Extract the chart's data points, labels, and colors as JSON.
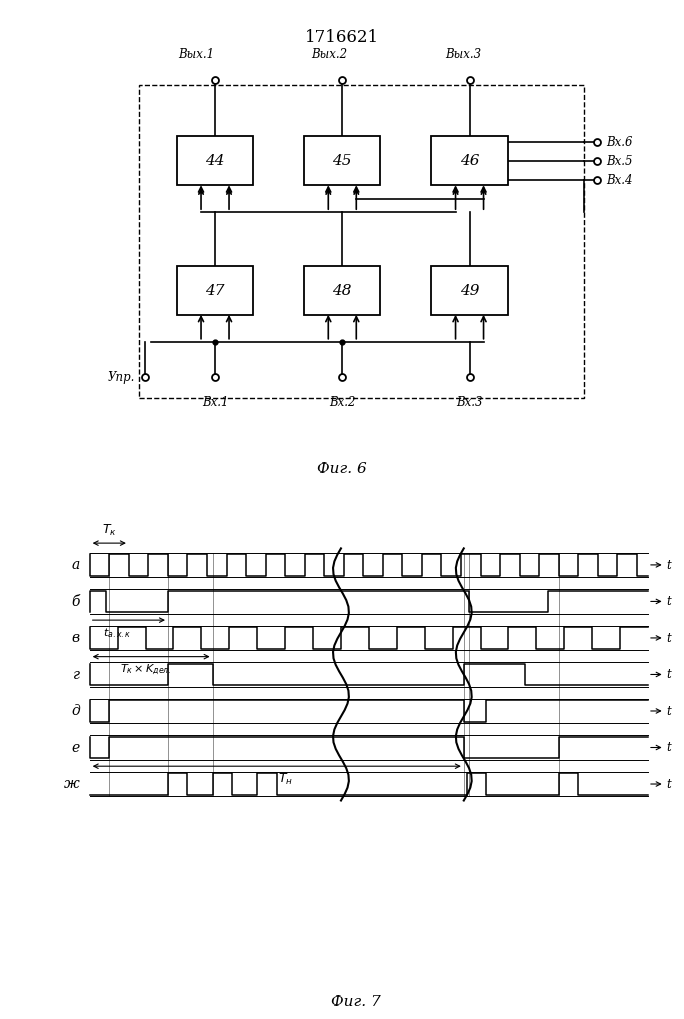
{
  "title": "1716621",
  "fig6_label": "Фиг. 6",
  "fig7_label": "Фиг. 7",
  "background": "#ffffff",
  "line_color": "#000000",
  "top_labels": [
    "Вых.1",
    "Вых.2",
    "Вых.3"
  ],
  "right_labels": [
    "Вх.6",
    "Вх.5",
    "Вх.4"
  ],
  "bot_labels": [
    "Вх.1",
    "Вх.2",
    "Вх.3"
  ],
  "control_label": "Упр.",
  "top_box_labels": [
    "44",
    "45",
    "46"
  ],
  "bot_box_labels": [
    "47",
    "48",
    "49"
  ],
  "timing_row_labels": [
    "а",
    "б",
    "в",
    "г",
    "д",
    "е",
    "ж"
  ]
}
